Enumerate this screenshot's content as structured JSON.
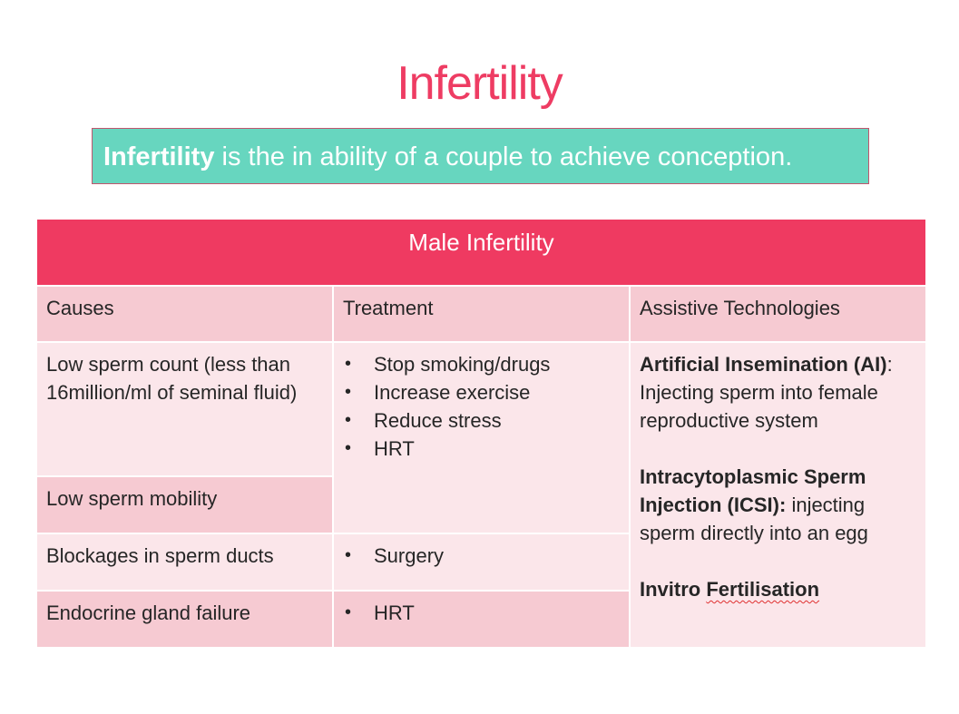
{
  "title": "Infertility",
  "definition": {
    "term": "Infertility",
    "rest": " is the in ability of a couple to achieve conception."
  },
  "table": {
    "header": "Male Infertility",
    "columns": [
      "Causes",
      "Treatment",
      "Assistive Technologies"
    ],
    "causes": [
      "Low sperm count (less than 16million/ml of seminal fluid)",
      "Low sperm mobility",
      "Blockages in sperm ducts",
      "Endocrine gland failure"
    ],
    "treatment_group1": [
      "Stop smoking/drugs",
      "Increase exercise",
      "Reduce stress",
      "HRT"
    ],
    "treatment_group2": [
      "Surgery"
    ],
    "treatment_group3": [
      "HRT"
    ],
    "assistive": {
      "ai_title": "Artificial Insemination (AI)",
      "ai_colon": ":",
      "ai_desc": "Injecting sperm into female reproductive system",
      "icsi_title": "Intracytoplasmic Sperm Injection (ICSI):",
      "icsi_desc": " injecting sperm directly into an egg",
      "ivf_word1": "Invitro ",
      "ivf_word2": "Fertilisation"
    }
  },
  "colors": {
    "title": "#ee3c63",
    "definition_bg": "#67d6bf",
    "header_bg": "#ef3a61",
    "row_dark": "#f6cad2",
    "row_light": "#fbe6ea"
  }
}
